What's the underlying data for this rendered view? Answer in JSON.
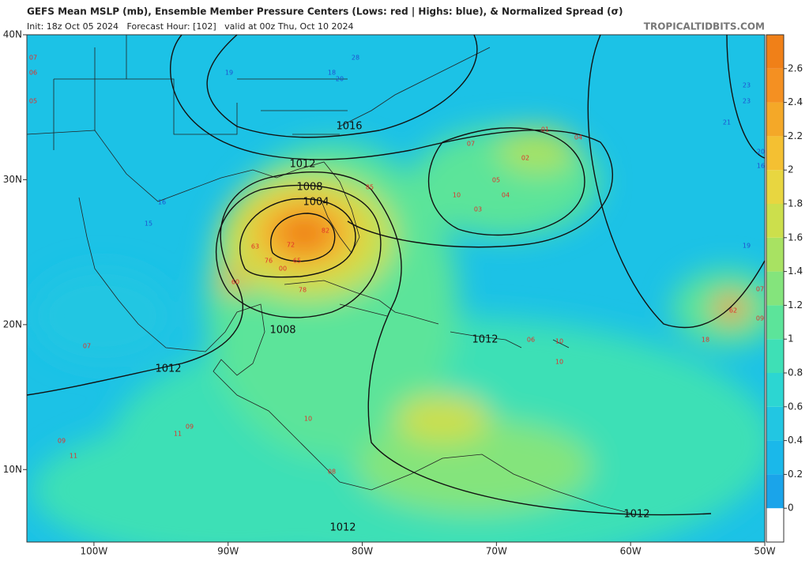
{
  "header": {
    "title": "GEFS Mean MSLP (mb), Ensemble Member Pressure Centers (Lows: red | Highs: blue), & Normalized Spread (σ)",
    "subtitle": "Init: 18z Oct 05 2024   Forecast Hour: [102]   valid at 00z Thu, Oct 10 2024",
    "credit": "TROPICALTIDBITS.COM"
  },
  "map": {
    "xlim": [
      -105,
      -50
    ],
    "ylim": [
      5,
      40
    ],
    "xticks": [
      {
        "value": -100,
        "label": "100W"
      },
      {
        "value": -90,
        "label": "90W"
      },
      {
        "value": -80,
        "label": "80W"
      },
      {
        "value": -70,
        "label": "70W"
      },
      {
        "value": -60,
        "label": "60W"
      },
      {
        "value": -50,
        "label": "50W"
      }
    ],
    "yticks": [
      {
        "value": 40,
        "label": "40N"
      },
      {
        "value": 30,
        "label": "30N"
      },
      {
        "value": 20,
        "label": "20N"
      },
      {
        "value": 10,
        "label": "10N"
      }
    ],
    "contour_labels": [
      "1016",
      "1012",
      "1008",
      "1004",
      "1008",
      "1012",
      "1012",
      "1012",
      "1012"
    ],
    "low_labels": [
      "07",
      "06",
      "05",
      "01",
      "04",
      "07",
      "02",
      "05",
      "03",
      "10",
      "04",
      "85",
      "63",
      "76",
      "00",
      "60",
      "78",
      "72",
      "82",
      "65",
      "06",
      "10",
      "09",
      "11",
      "09",
      "08",
      "07",
      "10",
      "62",
      "09",
      "18",
      "11",
      "10",
      "07"
    ],
    "high_labels": [
      "28",
      "19",
      "20",
      "16",
      "15",
      "23",
      "23",
      "19",
      "21",
      "16",
      "20",
      "18"
    ]
  },
  "colorbar": {
    "lim": [
      -0.2,
      2.8
    ],
    "ticks": [
      0,
      0.2,
      0.4,
      0.6,
      0.8,
      1,
      1.2,
      1.4,
      1.6,
      1.8,
      2,
      2.2,
      2.4,
      2.6
    ],
    "colors": [
      "#ffffff",
      "#1aa4ea",
      "#1ab8ea",
      "#22c6e2",
      "#2cd6d2",
      "#3ee0b6",
      "#5ce49a",
      "#84e47c",
      "#a8e262",
      "#ccdf4c",
      "#e8d640",
      "#f4c032",
      "#f4a828",
      "#f49022",
      "#f08018"
    ]
  }
}
